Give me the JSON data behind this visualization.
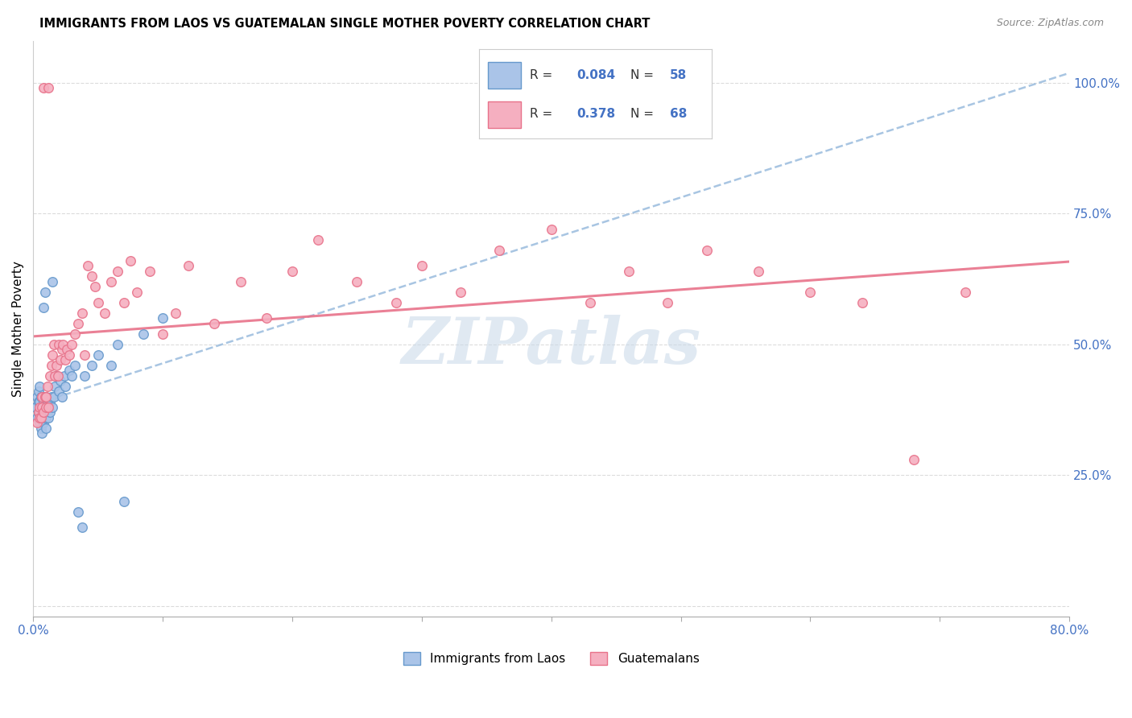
{
  "title": "IMMIGRANTS FROM LAOS VS GUATEMALAN SINGLE MOTHER POVERTY CORRELATION CHART",
  "source": "Source: ZipAtlas.com",
  "ylabel": "Single Mother Poverty",
  "xlim": [
    0.0,
    0.8
  ],
  "ylim": [
    -0.02,
    1.08
  ],
  "R_laos": 0.084,
  "N_laos": 58,
  "R_guatemalan": 0.378,
  "N_guatemalan": 68,
  "color_laos_fill": "#aac4e8",
  "color_laos_edge": "#6699cc",
  "color_guatemalan_fill": "#f5afc0",
  "color_guatemalan_edge": "#e8728a",
  "color_laos_trend": "#99bbdd",
  "color_guatemalan_trend": "#e8728a",
  "color_text_blue": "#4472c4",
  "watermark_color": "#c8d8e8",
  "background_color": "#ffffff",
  "grid_color": "#d8d8d8",
  "laos_x": [
    0.002,
    0.003,
    0.003,
    0.004,
    0.004,
    0.004,
    0.005,
    0.005,
    0.005,
    0.005,
    0.006,
    0.006,
    0.006,
    0.006,
    0.007,
    0.007,
    0.007,
    0.008,
    0.008,
    0.008,
    0.008,
    0.009,
    0.009,
    0.009,
    0.01,
    0.01,
    0.01,
    0.01,
    0.011,
    0.011,
    0.012,
    0.012,
    0.013,
    0.013,
    0.014,
    0.015,
    0.015,
    0.016,
    0.017,
    0.018,
    0.02,
    0.021,
    0.022,
    0.024,
    0.025,
    0.028,
    0.03,
    0.032,
    0.035,
    0.038,
    0.04,
    0.045,
    0.05,
    0.06,
    0.065,
    0.07,
    0.085,
    0.1
  ],
  "laos_y": [
    0.38,
    0.36,
    0.4,
    0.37,
    0.39,
    0.41,
    0.35,
    0.37,
    0.39,
    0.42,
    0.34,
    0.36,
    0.38,
    0.4,
    0.33,
    0.36,
    0.38,
    0.35,
    0.37,
    0.39,
    0.57,
    0.36,
    0.38,
    0.6,
    0.34,
    0.36,
    0.38,
    0.4,
    0.37,
    0.39,
    0.36,
    0.38,
    0.37,
    0.39,
    0.4,
    0.38,
    0.62,
    0.4,
    0.42,
    0.44,
    0.41,
    0.43,
    0.4,
    0.44,
    0.42,
    0.45,
    0.44,
    0.46,
    0.18,
    0.15,
    0.44,
    0.46,
    0.48,
    0.46,
    0.5,
    0.2,
    0.52,
    0.55
  ],
  "guatemalan_x": [
    0.003,
    0.004,
    0.005,
    0.005,
    0.006,
    0.007,
    0.007,
    0.008,
    0.008,
    0.009,
    0.01,
    0.01,
    0.011,
    0.012,
    0.012,
    0.013,
    0.014,
    0.015,
    0.016,
    0.017,
    0.018,
    0.019,
    0.02,
    0.021,
    0.022,
    0.023,
    0.025,
    0.026,
    0.028,
    0.03,
    0.032,
    0.035,
    0.038,
    0.04,
    0.042,
    0.045,
    0.048,
    0.05,
    0.055,
    0.06,
    0.065,
    0.07,
    0.075,
    0.08,
    0.09,
    0.1,
    0.11,
    0.12,
    0.14,
    0.16,
    0.18,
    0.2,
    0.22,
    0.25,
    0.28,
    0.3,
    0.33,
    0.36,
    0.4,
    0.43,
    0.46,
    0.49,
    0.52,
    0.56,
    0.6,
    0.64,
    0.68,
    0.72
  ],
  "guatemalan_y": [
    0.35,
    0.37,
    0.36,
    0.38,
    0.36,
    0.38,
    0.4,
    0.37,
    0.99,
    0.4,
    0.38,
    0.4,
    0.42,
    0.38,
    0.99,
    0.44,
    0.46,
    0.48,
    0.5,
    0.44,
    0.46,
    0.44,
    0.5,
    0.47,
    0.49,
    0.5,
    0.47,
    0.49,
    0.48,
    0.5,
    0.52,
    0.54,
    0.56,
    0.48,
    0.65,
    0.63,
    0.61,
    0.58,
    0.56,
    0.62,
    0.64,
    0.58,
    0.66,
    0.6,
    0.64,
    0.52,
    0.56,
    0.65,
    0.54,
    0.62,
    0.55,
    0.64,
    0.7,
    0.62,
    0.58,
    0.65,
    0.6,
    0.68,
    0.72,
    0.58,
    0.64,
    0.58,
    0.68,
    0.64,
    0.6,
    0.58,
    0.28,
    0.6
  ]
}
